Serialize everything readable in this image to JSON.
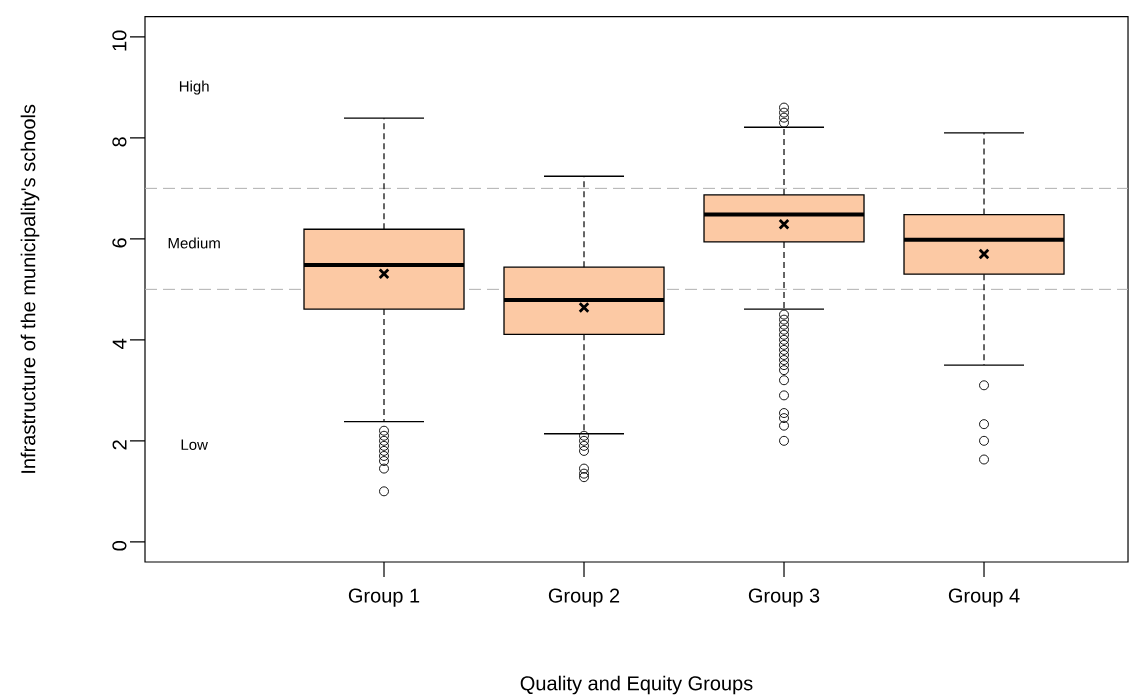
{
  "chart_data": {
    "type": "box",
    "categories": [
      "Group 1",
      "Group 2",
      "Group 3",
      "Group 4"
    ],
    "color": "#fcc9a4",
    "boxes": [
      {
        "low": 2.38,
        "q1": 4.61,
        "median": 5.48,
        "q3": 6.19,
        "high": 8.39,
        "mean": 5.31,
        "outliers": [
          2.2,
          2.1,
          2.0,
          1.9,
          1.8,
          1.7,
          1.6,
          1.45,
          1.0
        ]
      },
      {
        "low": 2.14,
        "q1": 4.11,
        "median": 4.79,
        "q3": 5.44,
        "high": 7.24,
        "mean": 4.64,
        "outliers": [
          2.1,
          2.0,
          1.9,
          1.8,
          1.45,
          1.35,
          1.28
        ]
      },
      {
        "low": 4.61,
        "q1": 5.94,
        "median": 6.48,
        "q3": 6.87,
        "high": 8.21,
        "mean": 6.29,
        "outliers": [
          8.6,
          8.5,
          8.4,
          8.3,
          4.5,
          4.4,
          4.3,
          4.2,
          4.1,
          4.0,
          3.9,
          3.8,
          3.7,
          3.6,
          3.5,
          3.4,
          3.2,
          2.9,
          2.55,
          2.45,
          2.3,
          2.0
        ]
      },
      {
        "low": 3.5,
        "q1": 5.3,
        "median": 5.98,
        "q3": 6.48,
        "high": 8.1,
        "mean": 5.7,
        "outliers": [
          3.1,
          2.33,
          2.0,
          1.63
        ]
      }
    ],
    "ylim": [
      -0.4,
      10.4
    ],
    "yticks": [
      0,
      2,
      4,
      6,
      8,
      10
    ],
    "xlabel": "Quality and Equity Groups",
    "ylabel": "Infrastructure of the municipality's schools",
    "ref_lines": [
      {
        "axis": "y",
        "value": 7,
        "color": "#b0b0b0",
        "line_style": "dashed"
      },
      {
        "axis": "y",
        "value": 5,
        "color": "#b0b0b0",
        "line_style": "dashed"
      }
    ],
    "annotations": [
      "High",
      "Medium",
      "Low"
    ]
  }
}
